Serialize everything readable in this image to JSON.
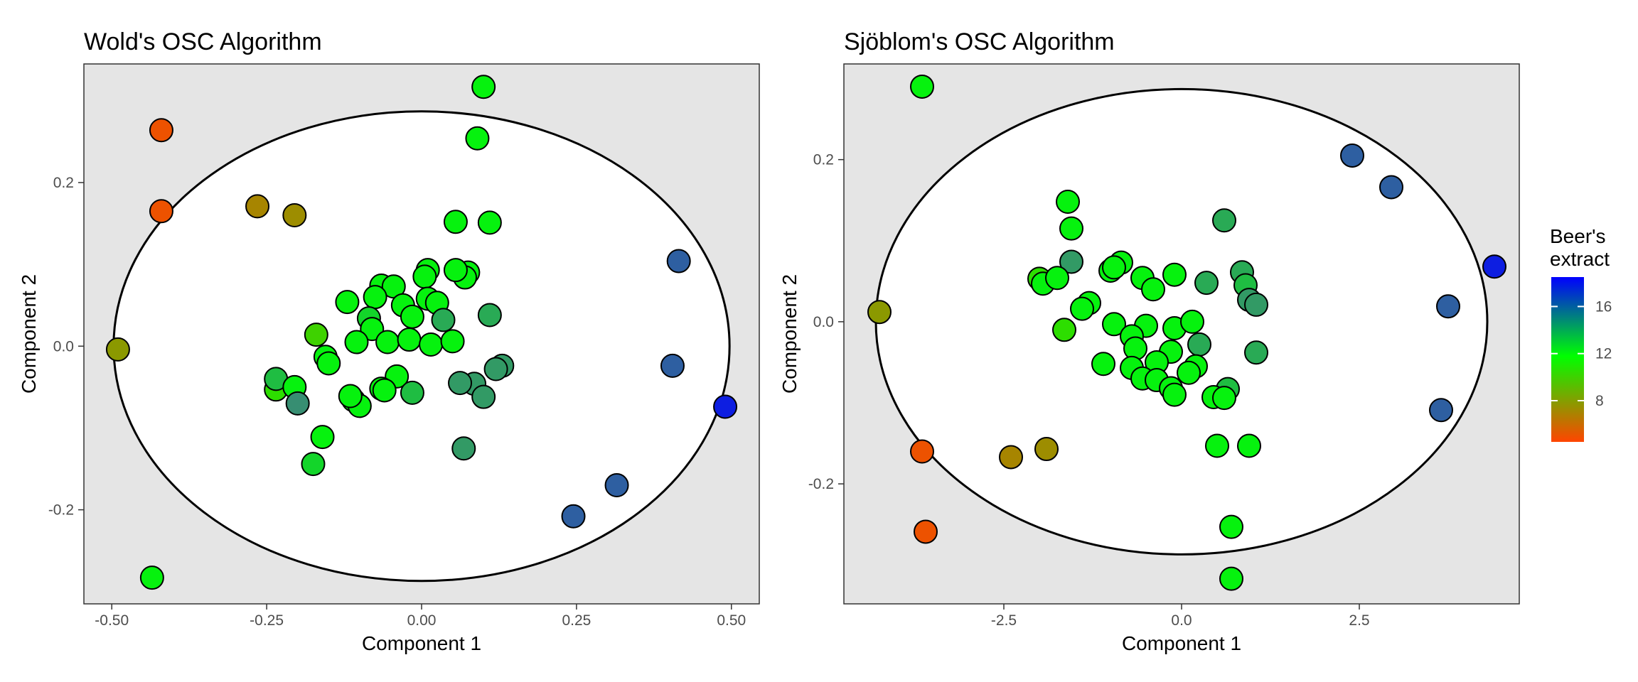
{
  "chart_data": [
    {
      "type": "scatter",
      "title": "Wold's OSC Algorithm",
      "xlabel": "Component 1",
      "ylabel": "Component 2",
      "xlim": [
        -0.545,
        0.545
      ],
      "ylim": [
        -0.315,
        0.345
      ],
      "xticks": [
        -0.5,
        -0.25,
        0,
        0.25,
        0.5
      ],
      "xtick_labels": [
        "-0.50",
        "-0.25",
        "0.00",
        "0.25",
        "0.50"
      ],
      "yticks": [
        -0.2,
        0,
        0.2
      ],
      "ytick_labels": [
        "-0.2",
        "0.0",
        "0.2"
      ],
      "grid": false,
      "background": "#e5e5e5",
      "ellipse": {
        "center": [
          0,
          0
        ],
        "rx": 0.497,
        "ry": 0.287
      },
      "points": [
        [
          0.1,
          0.317,
          12.0
        ],
        [
          0.09,
          0.254,
          12.0
        ],
        [
          -0.42,
          0.264,
          5.0
        ],
        [
          -0.42,
          0.165,
          5.0
        ],
        [
          -0.265,
          0.171,
          7.0
        ],
        [
          -0.205,
          0.16,
          7.3
        ],
        [
          -0.49,
          -0.004,
          7.8
        ],
        [
          0.055,
          0.152,
          12.0
        ],
        [
          0.11,
          0.151,
          12.0
        ],
        [
          0.415,
          0.104,
          16.5
        ],
        [
          0.405,
          -0.024,
          16.5
        ],
        [
          0.49,
          -0.074,
          18.0
        ],
        [
          0.315,
          -0.17,
          16.5
        ],
        [
          0.245,
          -0.208,
          16.5
        ],
        [
          -0.435,
          -0.283,
          12.0
        ],
        [
          0.01,
          0.093,
          12.0
        ],
        [
          0.005,
          0.085,
          12.0
        ],
        [
          0.075,
          0.09,
          12.0
        ],
        [
          0.07,
          0.084,
          12.0
        ],
        [
          0.055,
          0.093,
          12.0
        ],
        [
          -0.065,
          0.074,
          12.0
        ],
        [
          -0.045,
          0.073,
          12.0
        ],
        [
          -0.075,
          0.06,
          12.0
        ],
        [
          -0.12,
          0.054,
          12.0
        ],
        [
          -0.03,
          0.05,
          12.0
        ],
        [
          0.01,
          0.058,
          12.0
        ],
        [
          0.025,
          0.053,
          12.0
        ],
        [
          -0.085,
          0.034,
          12.5
        ],
        [
          -0.08,
          0.021,
          12.0
        ],
        [
          -0.015,
          0.036,
          12.0
        ],
        [
          0.035,
          0.032,
          13.5
        ],
        [
          0.11,
          0.038,
          13.5
        ],
        [
          -0.17,
          0.014,
          10.0
        ],
        [
          -0.105,
          0.005,
          12.0
        ],
        [
          -0.055,
          0.005,
          12.0
        ],
        [
          -0.02,
          0.008,
          12.0
        ],
        [
          0.015,
          0.002,
          12.0
        ],
        [
          0.05,
          0.006,
          12.0
        ],
        [
          -0.155,
          -0.013,
          12.0
        ],
        [
          -0.15,
          -0.021,
          12.0
        ],
        [
          0.13,
          -0.024,
          14.0
        ],
        [
          0.12,
          -0.028,
          14.0
        ],
        [
          -0.04,
          -0.037,
          12.0
        ],
        [
          0.085,
          -0.046,
          14.0
        ],
        [
          0.062,
          -0.045,
          14.0
        ],
        [
          -0.235,
          -0.053,
          10.5
        ],
        [
          -0.235,
          -0.04,
          13.0
        ],
        [
          -0.205,
          -0.05,
          12.0
        ],
        [
          -0.065,
          -0.052,
          12.0
        ],
        [
          -0.06,
          -0.054,
          12.0
        ],
        [
          -0.015,
          -0.057,
          13.0
        ],
        [
          0.1,
          -0.062,
          14.0
        ],
        [
          -0.2,
          -0.07,
          14.5
        ],
        [
          -0.11,
          -0.066,
          12.0
        ],
        [
          -0.1,
          -0.073,
          12.0
        ],
        [
          -0.115,
          -0.061,
          12.0
        ],
        [
          -0.16,
          -0.111,
          12.0
        ],
        [
          -0.175,
          -0.144,
          12.5
        ],
        [
          0.068,
          -0.125,
          14.0
        ]
      ]
    },
    {
      "type": "scatter",
      "title": "Sjöblom's OSC Algorithm",
      "xlabel": "Component 1",
      "ylabel": "Component 2",
      "xlim": [
        -4.75,
        4.75
      ],
      "ylim": [
        -0.348,
        0.318
      ],
      "xticks": [
        -2.5,
        0,
        2.5
      ],
      "xtick_labels": [
        "-2.5",
        "0.0",
        "2.5"
      ],
      "yticks": [
        -0.2,
        0,
        0.2
      ],
      "ytick_labels": [
        "-0.2",
        "0.0",
        "0.2"
      ],
      "grid": false,
      "background": "#e5e5e5",
      "ellipse": {
        "center": [
          0,
          0
        ],
        "rx": 4.3,
        "ry": 0.287
      },
      "points": [
        [
          -3.65,
          0.29,
          12.0
        ],
        [
          -4.25,
          0.012,
          7.8
        ],
        [
          -3.65,
          -0.16,
          5.0
        ],
        [
          -3.6,
          -0.259,
          5.0
        ],
        [
          -2.4,
          -0.167,
          7.0
        ],
        [
          -1.9,
          -0.157,
          7.3
        ],
        [
          2.4,
          0.205,
          16.5
        ],
        [
          2.95,
          0.166,
          16.5
        ],
        [
          4.4,
          0.068,
          18.0
        ],
        [
          3.75,
          0.019,
          16.5
        ],
        [
          3.65,
          -0.109,
          16.5
        ],
        [
          0.7,
          -0.253,
          12.0
        ],
        [
          0.7,
          -0.317,
          12.0
        ],
        [
          -1.6,
          0.148,
          12.0
        ],
        [
          -1.55,
          0.115,
          12.0
        ],
        [
          0.6,
          0.125,
          13.5
        ],
        [
          -1.55,
          0.074,
          14.0
        ],
        [
          -0.85,
          0.073,
          12.0
        ],
        [
          -1.0,
          0.063,
          12.0
        ],
        [
          -0.95,
          0.067,
          12.0
        ],
        [
          -2.0,
          0.053,
          10.5
        ],
        [
          -1.95,
          0.047,
          12.0
        ],
        [
          -1.75,
          0.054,
          12.0
        ],
        [
          -0.55,
          0.054,
          12.0
        ],
        [
          -0.1,
          0.058,
          12.0
        ],
        [
          0.85,
          0.061,
          13.5
        ],
        [
          0.9,
          0.045,
          13.0
        ],
        [
          0.35,
          0.048,
          13.5
        ],
        [
          -0.4,
          0.04,
          12.0
        ],
        [
          -1.3,
          0.023,
          12.0
        ],
        [
          -1.4,
          0.016,
          12.0
        ],
        [
          0.95,
          0.027,
          14.0
        ],
        [
          1.05,
          0.021,
          14.0
        ],
        [
          -1.65,
          -0.01,
          10.5
        ],
        [
          -0.95,
          -0.003,
          12.0
        ],
        [
          -0.5,
          -0.005,
          12.0
        ],
        [
          -0.1,
          -0.008,
          12.0
        ],
        [
          0.15,
          0.0,
          12.0
        ],
        [
          0.25,
          -0.028,
          13.5
        ],
        [
          -0.7,
          -0.018,
          12.0
        ],
        [
          -0.65,
          -0.033,
          12.0
        ],
        [
          -0.15,
          -0.037,
          12.0
        ],
        [
          -0.35,
          -0.05,
          12.0
        ],
        [
          0.2,
          -0.055,
          12.0
        ],
        [
          1.05,
          -0.038,
          13.5
        ],
        [
          -1.1,
          -0.052,
          12.0
        ],
        [
          -0.7,
          -0.057,
          12.0
        ],
        [
          0.1,
          -0.063,
          12.0
        ],
        [
          -0.55,
          -0.07,
          12.0
        ],
        [
          -0.35,
          -0.072,
          12.0
        ],
        [
          -0.15,
          -0.082,
          12.0
        ],
        [
          -0.1,
          -0.09,
          12.0
        ],
        [
          0.65,
          -0.083,
          13.0
        ],
        [
          0.45,
          -0.093,
          12.0
        ],
        [
          0.6,
          -0.094,
          12.0
        ],
        [
          0.5,
          -0.153,
          12.0
        ],
        [
          0.95,
          -0.153,
          12.0
        ]
      ]
    }
  ],
  "legend": {
    "title_line1": "Beer's",
    "title_line2": "extract",
    "ticks": [
      8,
      12,
      16
    ],
    "tick_labels": [
      "8",
      "12",
      "16"
    ],
    "range": [
      4.5,
      18.5
    ],
    "colors": [
      "#ff4500",
      "#00ff00",
      "#0000ff"
    ],
    "placement": "right"
  }
}
